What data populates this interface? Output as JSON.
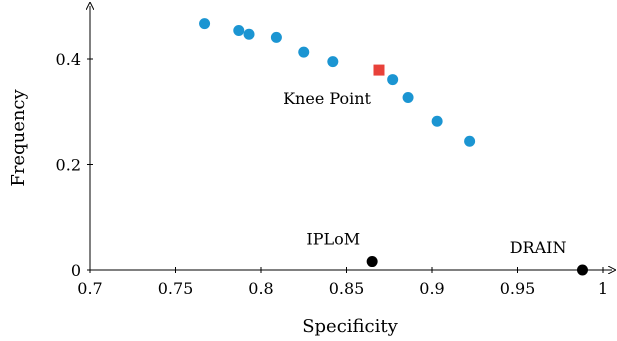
{
  "chart_data": {
    "type": "scatter",
    "xlabel": "Specificity",
    "ylabel": "Frequency",
    "xlim": [
      0.7,
      1.0
    ],
    "ylim": [
      0,
      0.5
    ],
    "xticks": [
      0.7,
      0.75,
      0.8,
      0.85,
      0.9,
      0.95,
      1.0
    ],
    "xtick_labels": [
      "0.7",
      "0.75",
      "0.8",
      "0.85",
      "0.9",
      "0.95",
      "1"
    ],
    "yticks": [
      0,
      0.2,
      0.4
    ],
    "ytick_labels": [
      "0",
      "0.2",
      "0.4"
    ],
    "grid": false,
    "series": [
      {
        "marker": "circle",
        "color": "#1b95d2",
        "points": [
          {
            "x": 0.767,
            "y": 0.467
          },
          {
            "x": 0.787,
            "y": 0.454
          },
          {
            "x": 0.793,
            "y": 0.447
          },
          {
            "x": 0.809,
            "y": 0.441
          },
          {
            "x": 0.825,
            "y": 0.413
          },
          {
            "x": 0.842,
            "y": 0.395
          },
          {
            "x": 0.877,
            "y": 0.361
          },
          {
            "x": 0.886,
            "y": 0.327
          },
          {
            "x": 0.903,
            "y": 0.282
          },
          {
            "x": 0.922,
            "y": 0.244
          }
        ]
      },
      {
        "marker": "square",
        "color": "#e8413a",
        "points": [
          {
            "x": 0.869,
            "y": 0.379
          }
        ]
      },
      {
        "marker": "circle",
        "color": "#000000",
        "points": [
          {
            "x": 0.865,
            "y": 0.016
          },
          {
            "x": 0.988,
            "y": 0.0
          }
        ]
      }
    ],
    "annotations": [
      {
        "text": "Knee Point",
        "x": 0.869,
        "y": 0.379
      },
      {
        "text": "IPLoM",
        "x": 0.865,
        "y": 0.016
      },
      {
        "text": "DRAIN",
        "x": 0.988,
        "y": 0.0
      }
    ]
  }
}
